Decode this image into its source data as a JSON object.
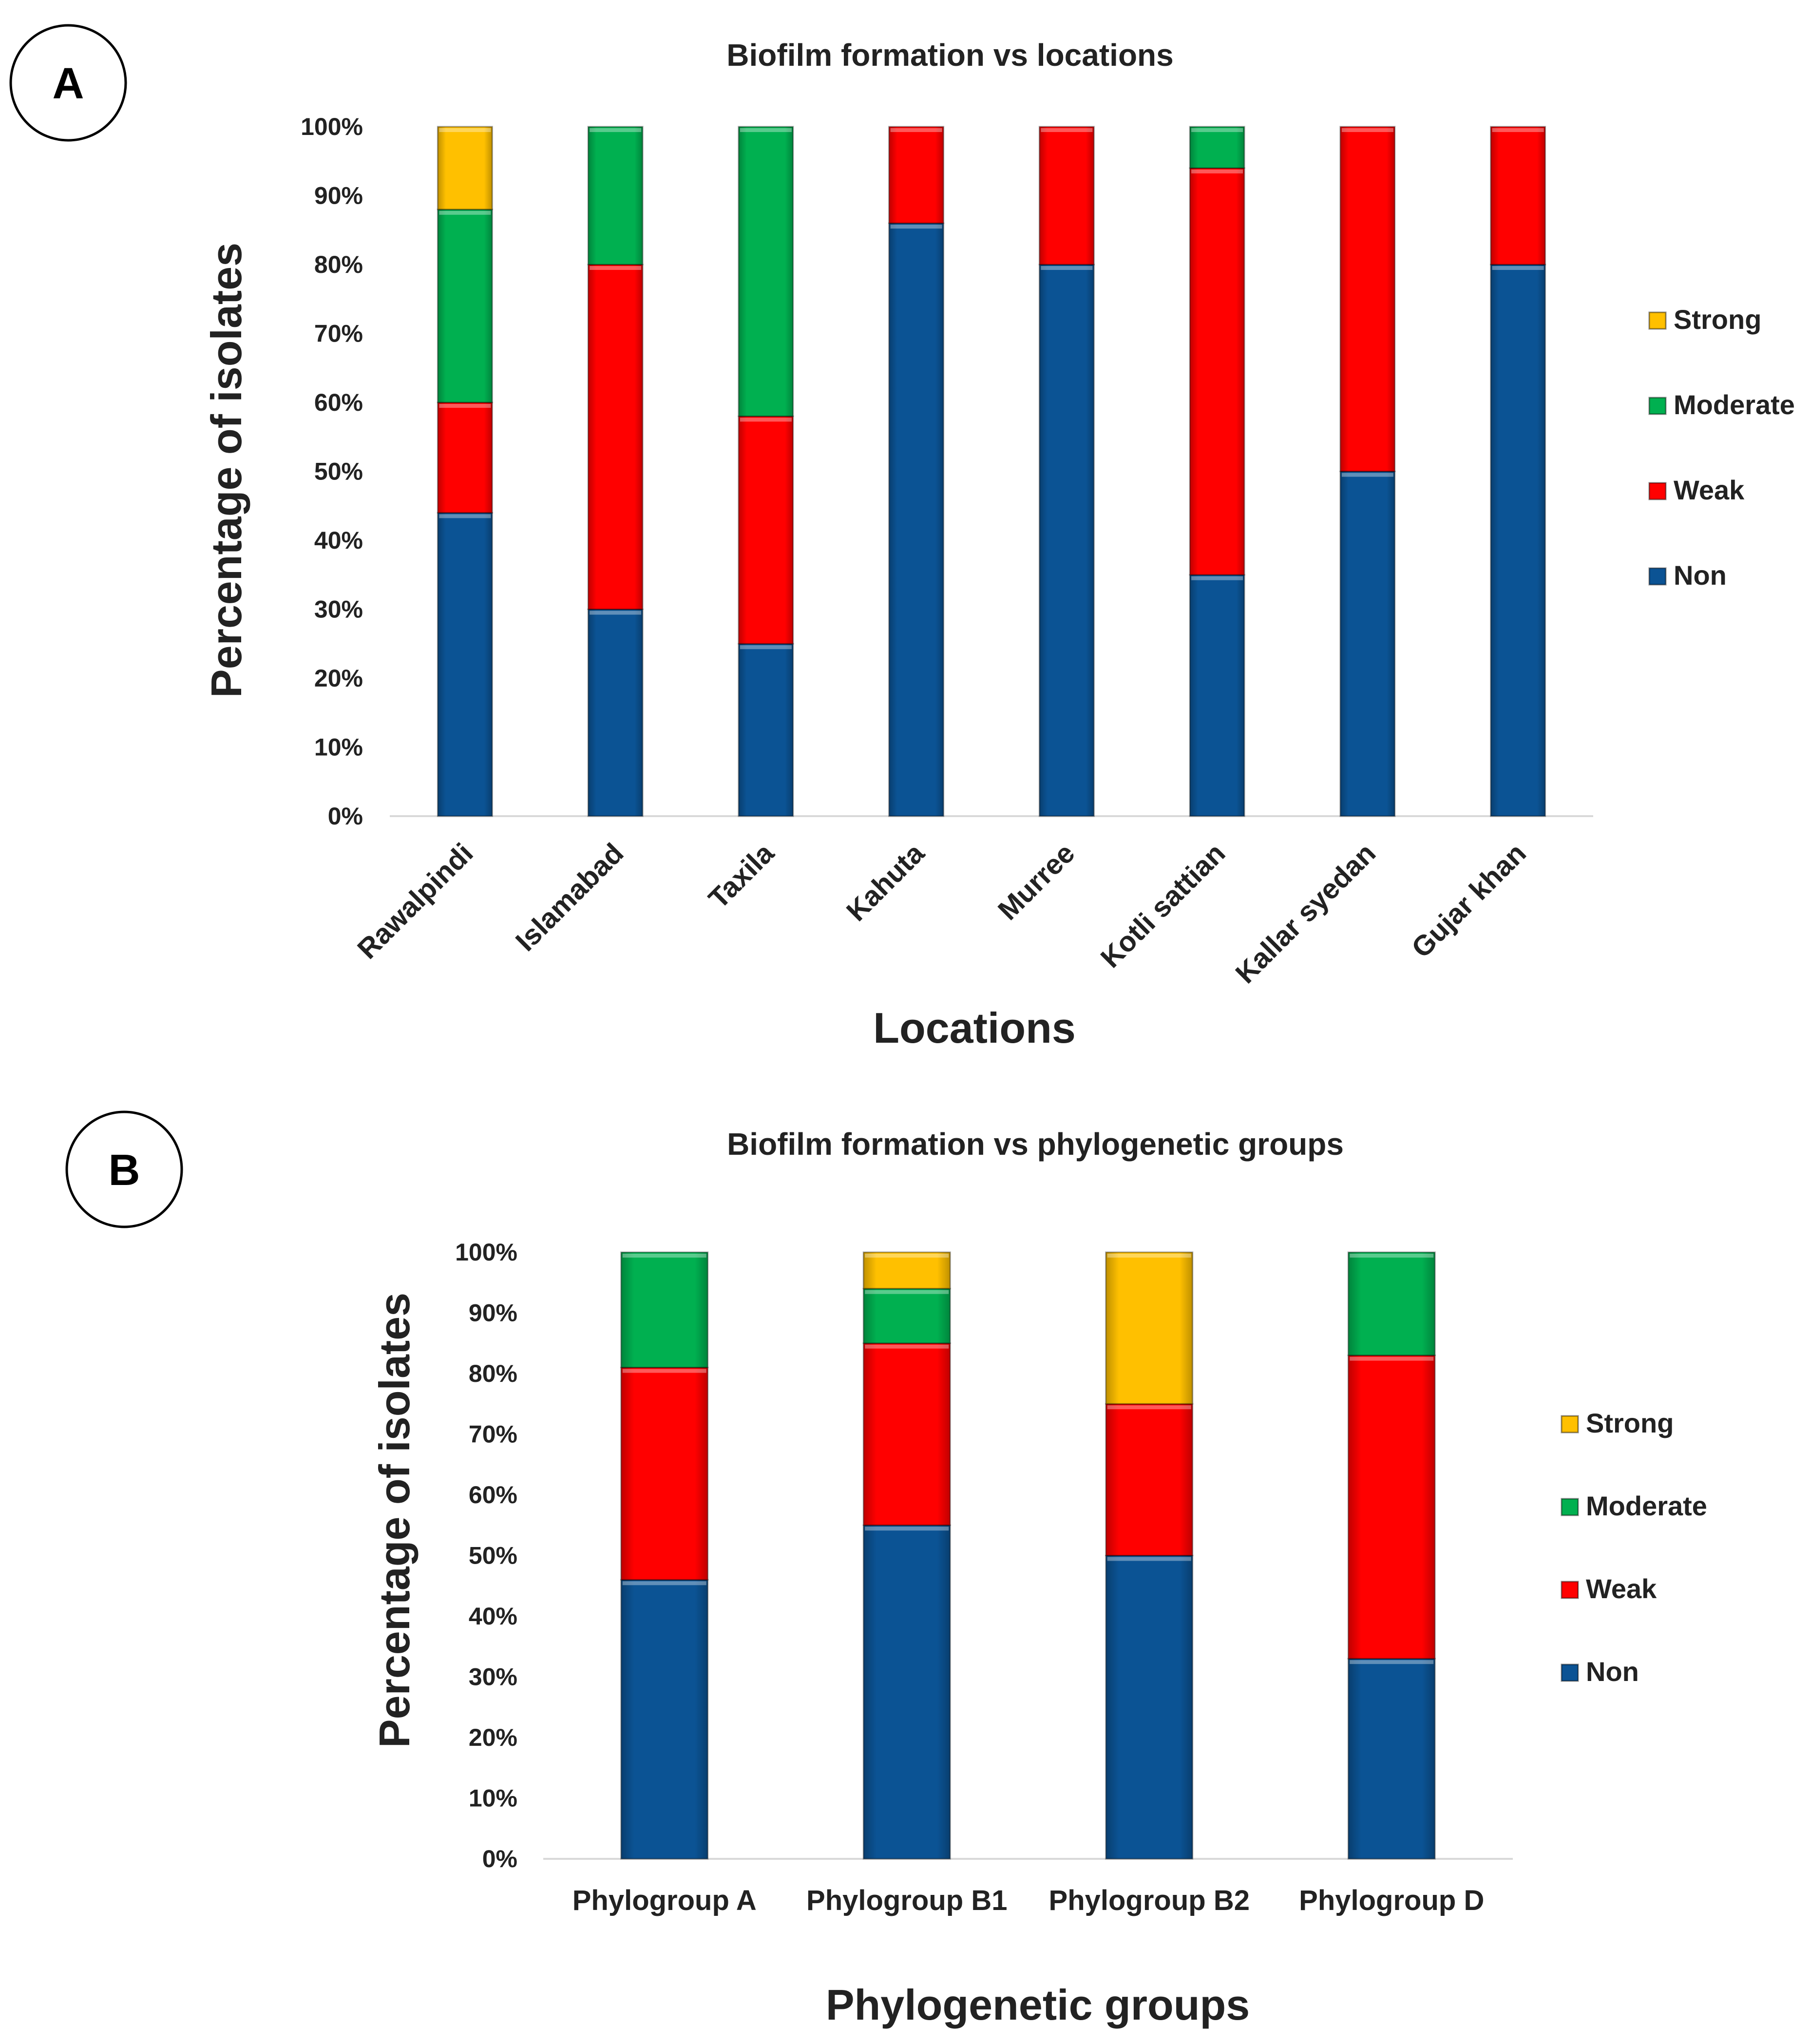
{
  "chart_data": [
    {
      "panel_label": "A",
      "type": "bar",
      "stacked": true,
      "title": "Biofilm formation vs locations",
      "xlabel": "Locations",
      "ylabel": "Percentage of isolates",
      "ylim": [
        0,
        100
      ],
      "yticks": [
        "0%",
        "10%",
        "20%",
        "30%",
        "40%",
        "50%",
        "60%",
        "70%",
        "80%",
        "90%",
        "100%"
      ],
      "legend_position": "right",
      "categories": [
        "Rawalpindi",
        "Islamabad",
        "Taxila",
        "Kahuta",
        "Murree",
        "Kotli sattian",
        "Kallar syedan",
        "Gujar khan"
      ],
      "series": [
        {
          "name": "Non",
          "color": "#0b5394",
          "values": [
            44,
            30,
            25,
            86,
            80,
            35,
            50,
            80
          ]
        },
        {
          "name": "Weak",
          "color": "#ff0000",
          "values": [
            16,
            50,
            33,
            14,
            20,
            59,
            50,
            20
          ]
        },
        {
          "name": "Moderate",
          "color": "#00b050",
          "values": [
            28,
            20,
            42,
            0,
            0,
            6,
            0,
            0
          ]
        },
        {
          "name": "Strong",
          "color": "#ffc000",
          "values": [
            12,
            0,
            0,
            0,
            0,
            0,
            0,
            0
          ]
        }
      ]
    },
    {
      "panel_label": "B",
      "type": "bar",
      "stacked": true,
      "title": "Biofilm formation vs phylogenetic groups",
      "xlabel": "Phylogenetic groups",
      "ylabel": "Percentage of isolates",
      "ylim": [
        0,
        100
      ],
      "yticks": [
        "0%",
        "10%",
        "20%",
        "30%",
        "40%",
        "50%",
        "60%",
        "70%",
        "80%",
        "90%",
        "100%"
      ],
      "legend_position": "right",
      "categories": [
        "Phylogroup A",
        "Phylogroup B1",
        "Phylogroup B2",
        "Phylogroup D"
      ],
      "series": [
        {
          "name": "Non",
          "color": "#0b5394",
          "values": [
            46,
            55,
            50,
            33
          ]
        },
        {
          "name": "Weak",
          "color": "#ff0000",
          "values": [
            35,
            30,
            25,
            50
          ]
        },
        {
          "name": "Moderate",
          "color": "#00b050",
          "values": [
            19,
            9,
            0,
            17
          ]
        },
        {
          "name": "Strong",
          "color": "#ffc000",
          "values": [
            0,
            6,
            25,
            0
          ]
        }
      ]
    }
  ]
}
